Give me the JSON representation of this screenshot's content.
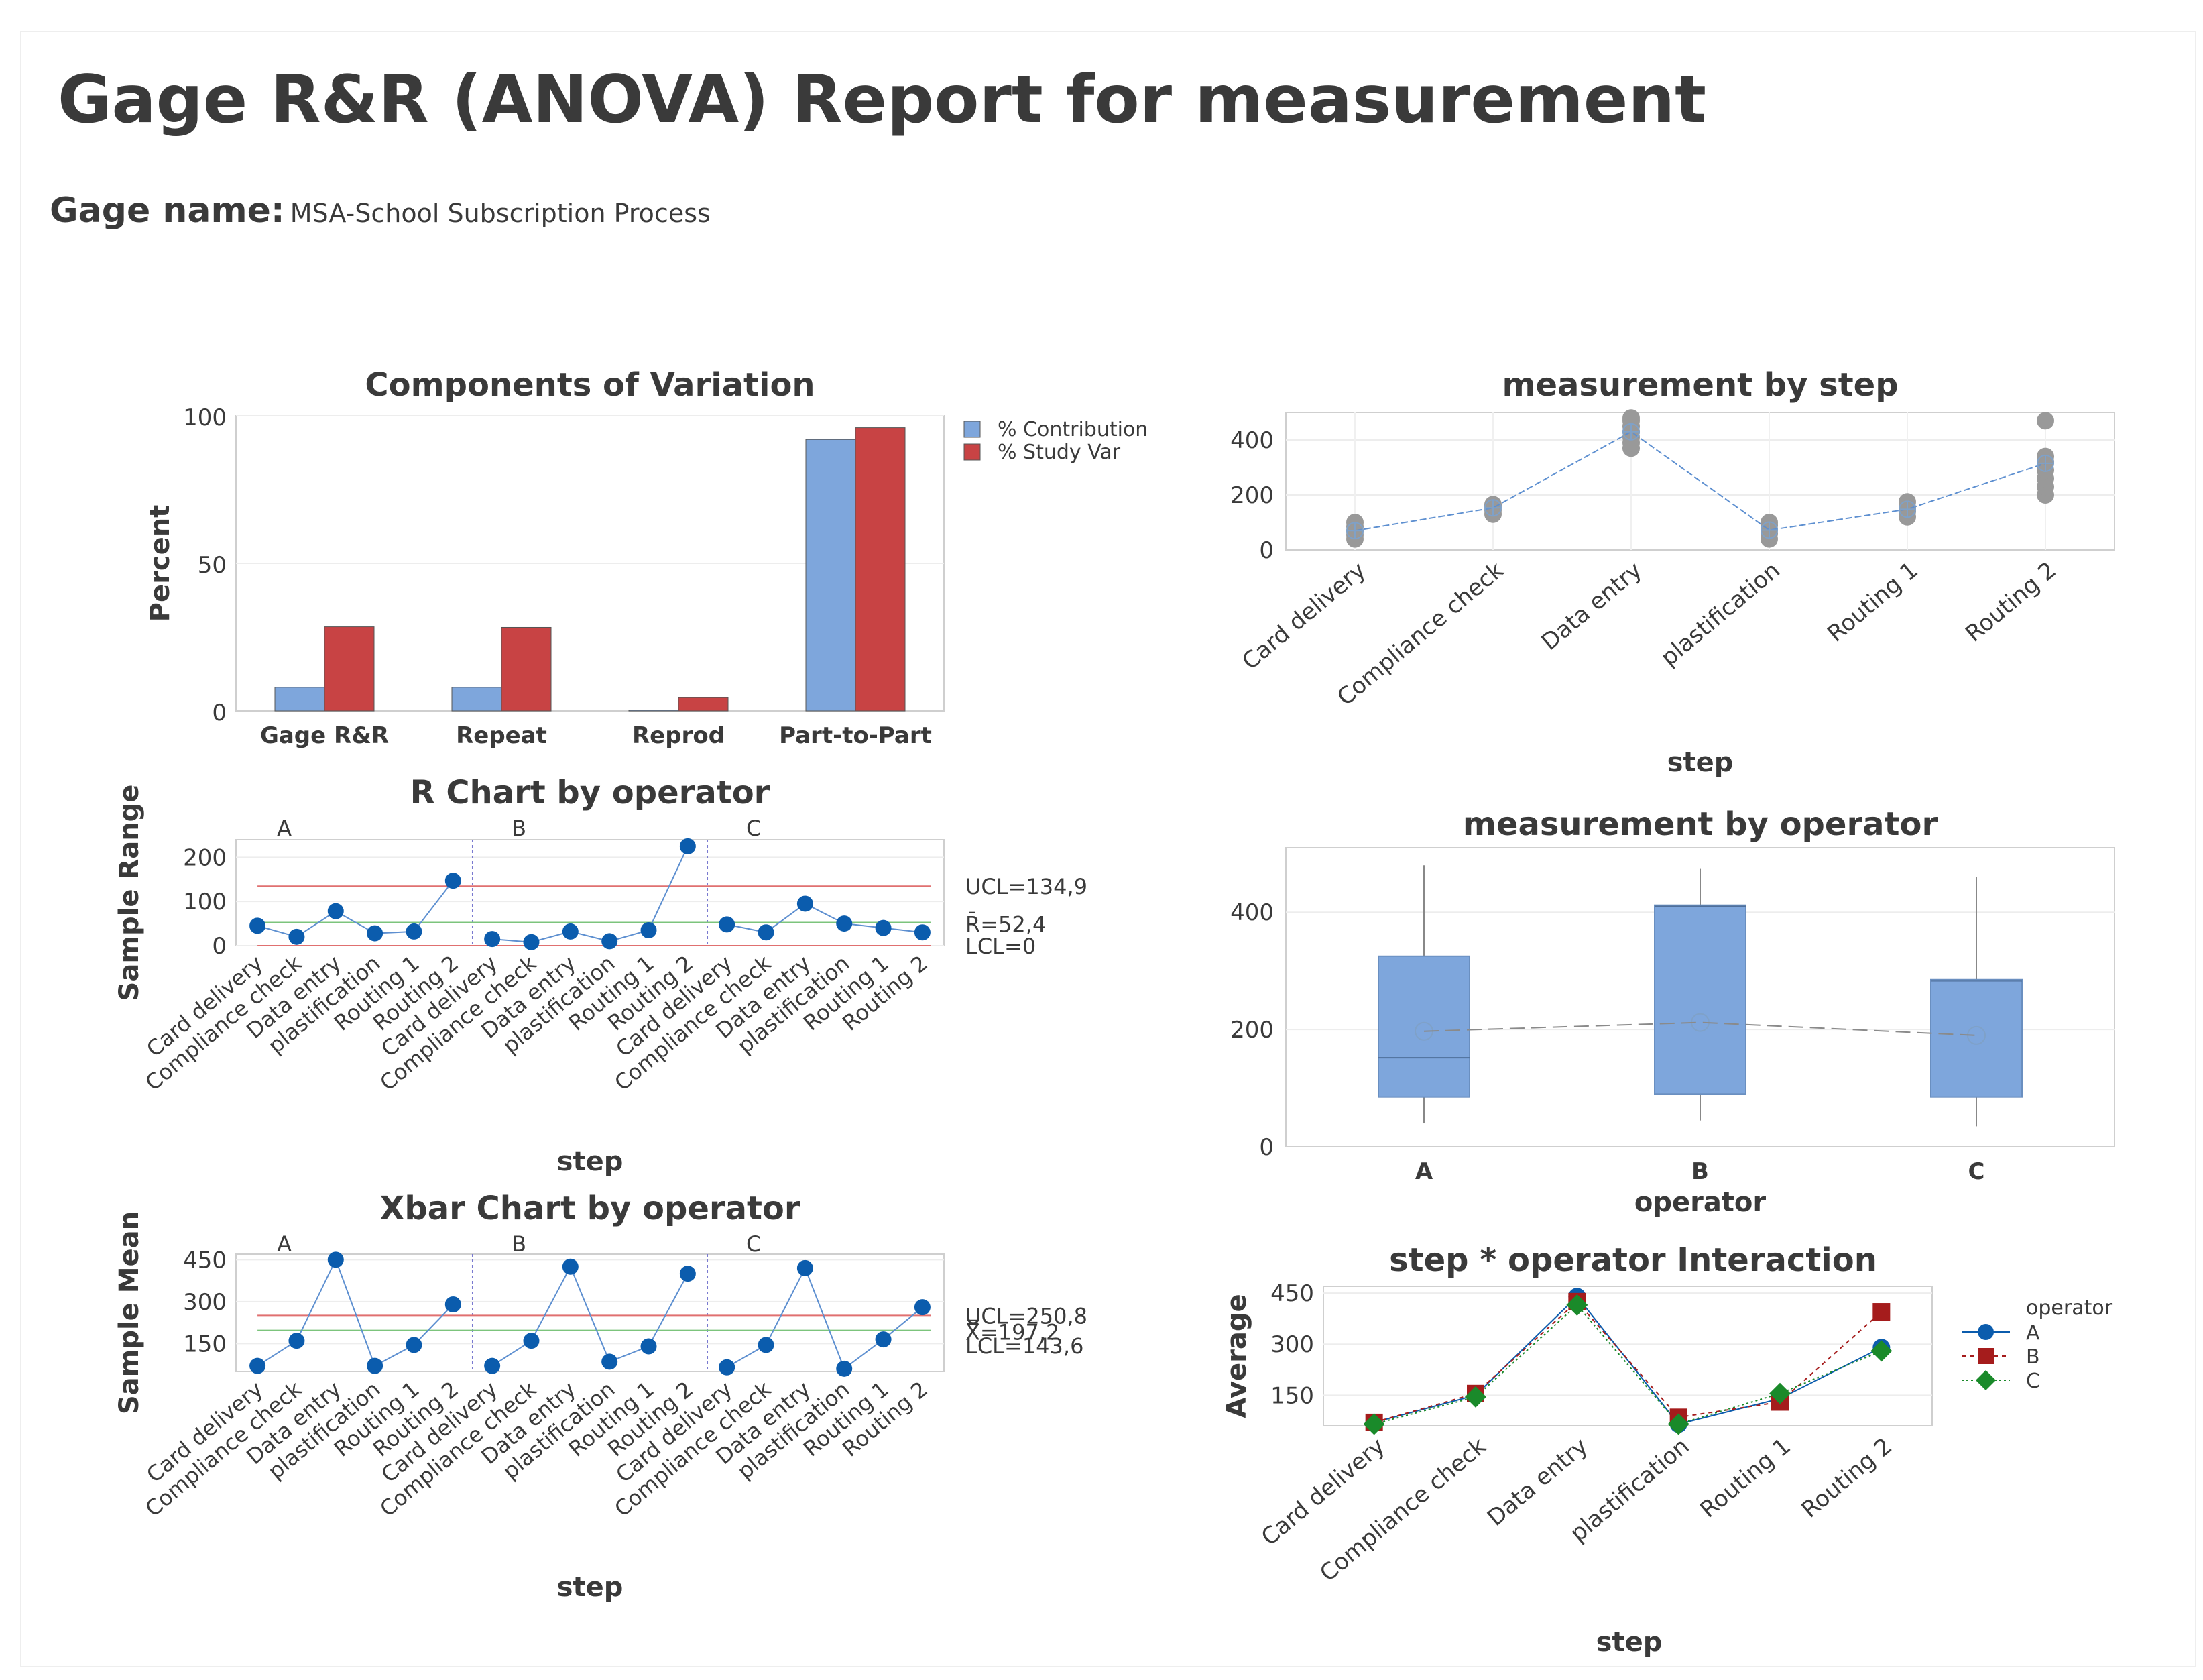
{
  "report": {
    "title": "Gage R&R (ANOVA) Report for measurement",
    "gage_label": "Gage name:",
    "gage_value": "MSA-School Subscription Process"
  },
  "colors": {
    "blue_bar": "#7ea6dc",
    "red_bar": "#c84344",
    "dot_blue": "#0b5cad",
    "gray_dot": "#999999",
    "ucl_red": "#e07070",
    "center_green": "#7cc47c",
    "op_b": "#a51c1c",
    "op_c": "#1a8a2a"
  },
  "chart_data": [
    {
      "id": "components",
      "type": "bar",
      "title": "Components of Variation",
      "ylabel": "Percent",
      "categories": [
        "Gage R&R",
        "Repeat",
        "Reprod",
        "Part-to-Part"
      ],
      "series": [
        {
          "name": "% Contribution",
          "values": [
            8,
            8,
            0.3,
            92
          ]
        },
        {
          "name": "% Study Var",
          "values": [
            28.5,
            28.3,
            4.5,
            96
          ]
        }
      ],
      "ylim": [
        0,
        100
      ],
      "yticks": [
        "0",
        "50",
        "100"
      ],
      "legend": "top-right"
    },
    {
      "id": "rchart",
      "type": "line",
      "title": "R Chart by operator",
      "ylabel": "Sample Range",
      "xlabel": "step",
      "operators": [
        "A",
        "B",
        "C"
      ],
      "steps": [
        "Card delivery",
        "Compliance check",
        "Data entry",
        "plastification",
        "Routing 1",
        "Routing 2"
      ],
      "values": [
        45,
        20,
        78,
        28,
        32,
        147,
        15,
        8,
        32,
        10,
        35,
        225,
        48,
        30,
        95,
        50,
        40,
        30
      ],
      "ylim": [
        0,
        240
      ],
      "yticks": [
        "0",
        "100",
        "200"
      ],
      "ucl": 134.9,
      "center": 52.4,
      "lcl": 0,
      "ucl_label": "UCL=134,9",
      "center_label": "R̄=52,4",
      "lcl_label": "LCL=0"
    },
    {
      "id": "xbarchart",
      "type": "line",
      "title": "Xbar Chart by operator",
      "ylabel": "Sample Mean",
      "xlabel": "step",
      "operators": [
        "A",
        "B",
        "C"
      ],
      "steps": [
        "Card delivery",
        "Compliance check",
        "Data entry",
        "plastification",
        "Routing 1",
        "Routing 2"
      ],
      "values": [
        70,
        160,
        450,
        70,
        145,
        290,
        70,
        160,
        425,
        85,
        140,
        400,
        65,
        145,
        420,
        60,
        165,
        280
      ],
      "ylim": [
        50,
        470
      ],
      "yticks": [
        "150",
        "300",
        "450"
      ],
      "ucl": 250.8,
      "center": 197.2,
      "lcl": 143.6,
      "ucl_label": "UCL=250,8",
      "center_label": "X̿=197,2",
      "lcl_label": "LCL=143,6"
    },
    {
      "id": "bystep",
      "type": "scatter",
      "title": "measurement by step",
      "xlabel": "step",
      "categories": [
        "Card delivery",
        "Compliance check",
        "Data entry",
        "plastification",
        "Routing 1",
        "Routing 2"
      ],
      "points": [
        [
          40,
          55,
          70,
          85,
          100
        ],
        [
          130,
          145,
          160,
          165
        ],
        [
          370,
          390,
          410,
          430,
          450,
          470,
          480
        ],
        [
          40,
          60,
          75,
          90,
          100
        ],
        [
          120,
          140,
          155,
          175
        ],
        [
          200,
          230,
          260,
          290,
          320,
          340,
          470
        ]
      ],
      "means": [
        70,
        153,
        430,
        72,
        148,
        315
      ],
      "ylim": [
        0,
        500
      ],
      "yticks": [
        "0",
        "200",
        "400"
      ]
    },
    {
      "id": "byoperator",
      "type": "box",
      "title": "measurement by operator",
      "xlabel": "operator",
      "categories": [
        "A",
        "B",
        "C"
      ],
      "boxes": [
        {
          "min": 40,
          "q1": 85,
          "median": 152,
          "q3": 325,
          "max": 480,
          "mean": 197
        },
        {
          "min": 45,
          "q1": 90,
          "median": 410,
          "q3": 412,
          "max": 475,
          "mean": 212
        },
        {
          "min": 35,
          "q1": 85,
          "median": 283,
          "q3": 285,
          "max": 460,
          "mean": 190
        }
      ],
      "ylim": [
        0,
        510
      ],
      "yticks": [
        "0",
        "200",
        "400"
      ]
    },
    {
      "id": "interaction",
      "type": "line",
      "title": "step * operator Interaction",
      "ylabel": "Average",
      "xlabel": "step",
      "categories": [
        "Card delivery",
        "Compliance check",
        "Data entry",
        "plastification",
        "Routing 1",
        "Routing 2"
      ],
      "series": [
        {
          "name": "A",
          "values": [
            70,
            150,
            440,
            65,
            140,
            290
          ]
        },
        {
          "name": "B",
          "values": [
            70,
            155,
            425,
            85,
            130,
            395
          ]
        },
        {
          "name": "C",
          "values": [
            65,
            145,
            415,
            65,
            155,
            280
          ]
        }
      ],
      "legend_title": "operator",
      "ylim": [
        60,
        470
      ],
      "yticks": [
        "150",
        "300",
        "450"
      ]
    }
  ]
}
